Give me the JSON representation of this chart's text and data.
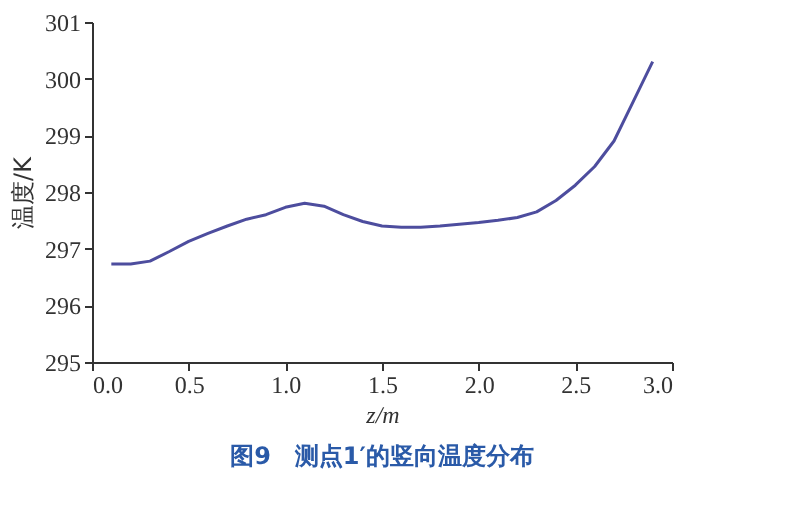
{
  "chart_data": {
    "type": "line",
    "title": "图9　测点1′的竖向温度分布",
    "xlabel": "z/m",
    "ylabel": "温度/K",
    "x": [
      0.1,
      0.2,
      0.3,
      0.4,
      0.5,
      0.6,
      0.7,
      0.8,
      0.9,
      1.0,
      1.1,
      1.2,
      1.3,
      1.4,
      1.5,
      1.6,
      1.7,
      1.8,
      1.9,
      2.0,
      2.1,
      2.2,
      2.3,
      2.4,
      2.5,
      2.6,
      2.7,
      2.8,
      2.9
    ],
    "series": [
      {
        "color": "#4d4d9e",
        "values": [
          296.73,
          296.73,
          296.78,
          296.95,
          297.13,
          297.27,
          297.4,
          297.52,
          297.6,
          297.73,
          297.8,
          297.75,
          297.6,
          297.48,
          297.4,
          297.38,
          297.38,
          297.4,
          297.43,
          297.46,
          297.5,
          297.55,
          297.65,
          297.85,
          298.12,
          298.45,
          298.9,
          299.6,
          300.3
        ]
      }
    ],
    "xlim": [
      0,
      3
    ],
    "xticks": [
      {
        "value": 0,
        "label": "0.0"
      },
      0.5,
      {
        "value": 1,
        "label": "1.0"
      },
      1.5,
      {
        "value": 2,
        "label": "2.0"
      },
      2.5,
      {
        "value": 3,
        "label": "3.0"
      }
    ],
    "ylim": [
      295,
      301
    ],
    "yticks": [
      295,
      296,
      297,
      298,
      299,
      300,
      301
    ],
    "grid": false,
    "marker": "none",
    "line_style": "solid"
  }
}
